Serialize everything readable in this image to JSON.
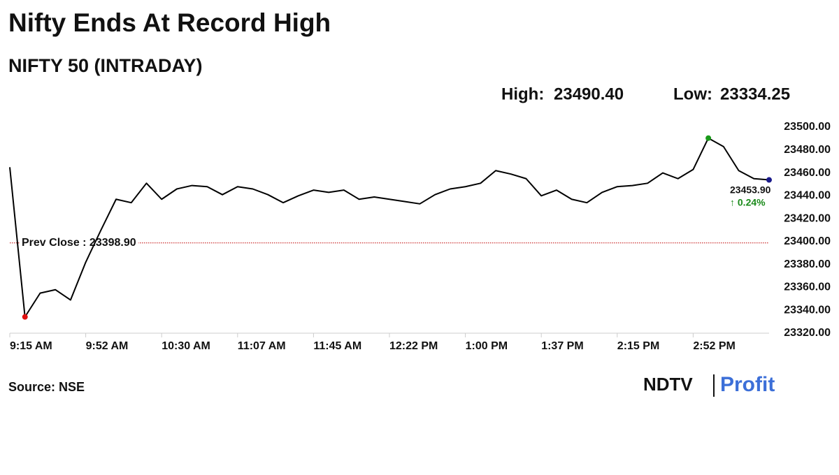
{
  "chart_data": {
    "type": "line",
    "title": "Nifty Ends At Record High",
    "subtitle": "NIFTY 50 (INTRADAY)",
    "high_caption": "High:",
    "high": {
      "value": 23490.4,
      "label": "23490.40"
    },
    "low_caption": "Low:",
    "low": {
      "value": 23334.25,
      "label": "23334.25"
    },
    "categories": [
      "9:15 AM",
      null,
      null,
      null,
      null,
      "9:52 AM",
      null,
      null,
      null,
      null,
      "10:30 AM",
      null,
      null,
      null,
      null,
      "11:07 AM",
      null,
      null,
      null,
      null,
      "11:45 AM",
      null,
      null,
      null,
      null,
      "12:22 PM",
      null,
      null,
      null,
      null,
      "1:00 PM",
      null,
      null,
      null,
      null,
      "1:37 PM",
      null,
      null,
      null,
      null,
      "2:15 PM",
      null,
      null,
      null,
      null,
      "2:52 PM",
      null,
      null,
      null,
      null,
      null
    ],
    "values": [
      23465,
      23334.25,
      23355,
      23358,
      23349,
      23382,
      23410,
      23437,
      23434,
      23451,
      23437,
      23446,
      23449,
      23448,
      23441,
      23448,
      23446,
      23441,
      23434,
      23440,
      23445,
      23443,
      23445,
      23437,
      23439,
      23437,
      23435,
      23433,
      23441,
      23446,
      23448,
      23451,
      23462,
      23459,
      23455,
      23440,
      23445,
      23437,
      23434,
      23443,
      23448,
      23449,
      23451,
      23460,
      23455,
      23463,
      23490.4,
      23483,
      23462,
      23455,
      23453.9
    ],
    "value_labels": [
      null,
      null,
      null,
      null,
      null,
      null,
      null,
      null,
      null,
      null,
      null,
      null,
      null,
      null,
      null,
      null,
      null,
      null,
      null,
      null,
      null,
      null,
      null,
      null,
      null,
      null,
      null,
      null,
      null,
      null,
      null,
      null,
      null,
      null,
      null,
      null,
      null,
      null,
      null,
      null,
      null,
      null,
      null,
      null,
      null,
      null,
      null,
      null,
      null,
      null,
      "23453.90"
    ],
    "change": {
      "value": 0.24,
      "label": "↑ 0.24%"
    },
    "color": "#000000",
    "reference_line": {
      "label": "Prev Close : 23398.90",
      "value": 23398.9,
      "color": "#c00000"
    },
    "ylim": [
      23320,
      23500
    ],
    "yticks": [
      {
        "value": 23320,
        "label": "23320.00"
      },
      {
        "value": 23340,
        "label": "23340.00"
      },
      {
        "value": 23360,
        "label": "23360.00"
      },
      {
        "value": 23380,
        "label": "23380.00"
      },
      {
        "value": 23400,
        "label": "23400.00"
      },
      {
        "value": 23420,
        "label": "23420.00"
      },
      {
        "value": 23440,
        "label": "23440.00"
      },
      {
        "value": 23460,
        "label": "23460.00"
      },
      {
        "value": 23480,
        "label": "23480.00"
      },
      {
        "value": 23500,
        "label": "23500.00"
      }
    ],
    "grid": false,
    "source": "Source: NSE",
    "brand": {
      "left": "NDTV",
      "right": "Profit"
    }
  }
}
